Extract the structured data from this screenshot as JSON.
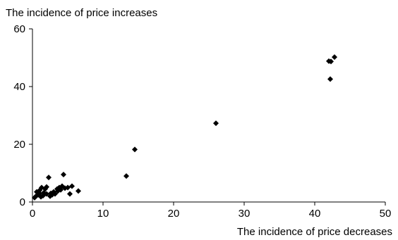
{
  "chart_data": {
    "type": "scatter",
    "title": "",
    "xlabel": "The incidence of price decreases",
    "ylabel": "The incidence of price increases",
    "xlim": [
      0,
      50
    ],
    "ylim": [
      0,
      60
    ],
    "x_ticks": [
      0,
      10,
      20,
      30,
      40,
      50
    ],
    "y_ticks": [
      0,
      20,
      40,
      60
    ],
    "grid": false,
    "legend": "none",
    "marker": "diamond",
    "marker_color": "#000000",
    "points": [
      {
        "x": 0.3,
        "y": 1.5
      },
      {
        "x": 0.5,
        "y": 2.0
      },
      {
        "x": 0.6,
        "y": 3.5
      },
      {
        "x": 0.8,
        "y": 2.5
      },
      {
        "x": 1.0,
        "y": 3.0
      },
      {
        "x": 1.0,
        "y": 4.0
      },
      {
        "x": 1.2,
        "y": 1.8
      },
      {
        "x": 1.3,
        "y": 5.0
      },
      {
        "x": 1.5,
        "y": 2.2
      },
      {
        "x": 1.6,
        "y": 3.2
      },
      {
        "x": 1.8,
        "y": 4.5
      },
      {
        "x": 2.0,
        "y": 2.8
      },
      {
        "x": 2.0,
        "y": 5.2
      },
      {
        "x": 2.3,
        "y": 8.5
      },
      {
        "x": 2.5,
        "y": 2.0
      },
      {
        "x": 2.6,
        "y": 3.0
      },
      {
        "x": 2.8,
        "y": 2.5
      },
      {
        "x": 3.0,
        "y": 3.5
      },
      {
        "x": 3.2,
        "y": 2.8
      },
      {
        "x": 3.5,
        "y": 4.5
      },
      {
        "x": 3.6,
        "y": 3.8
      },
      {
        "x": 3.8,
        "y": 5.0
      },
      {
        "x": 4.0,
        "y": 4.2
      },
      {
        "x": 4.2,
        "y": 5.5
      },
      {
        "x": 4.4,
        "y": 9.5
      },
      {
        "x": 4.6,
        "y": 4.8
      },
      {
        "x": 5.0,
        "y": 5.0
      },
      {
        "x": 5.3,
        "y": 2.8
      },
      {
        "x": 5.6,
        "y": 5.5
      },
      {
        "x": 6.5,
        "y": 3.8
      },
      {
        "x": 13.3,
        "y": 9.0
      },
      {
        "x": 14.5,
        "y": 18.2
      },
      {
        "x": 26.0,
        "y": 27.3
      },
      {
        "x": 42.0,
        "y": 48.8
      },
      {
        "x": 42.3,
        "y": 48.7
      },
      {
        "x": 42.8,
        "y": 50.2
      },
      {
        "x": 42.2,
        "y": 42.6
      }
    ]
  }
}
